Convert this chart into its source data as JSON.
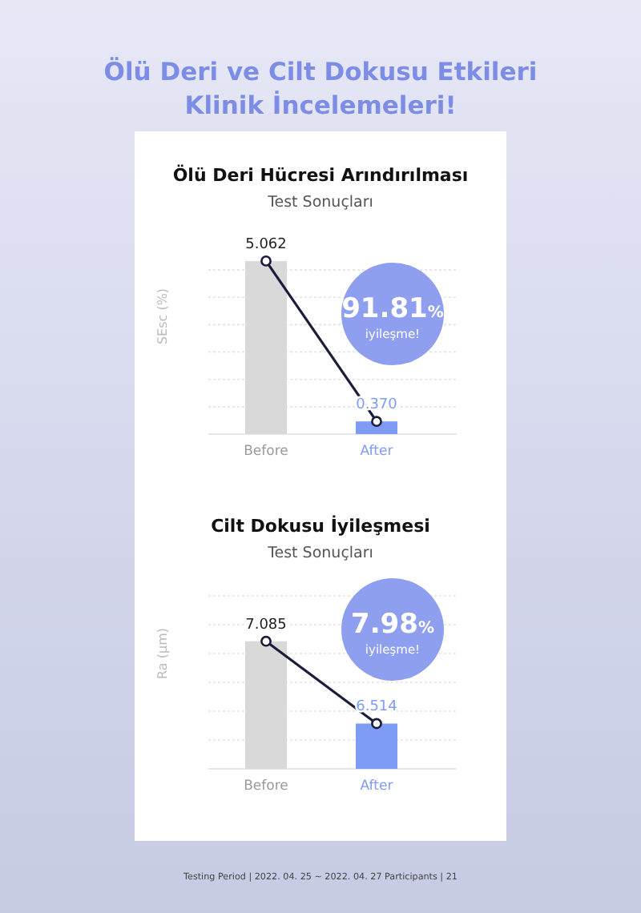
{
  "chart_data": [
    {
      "type": "bar",
      "title": "Ölü Deri Hücresi Arındırılması",
      "subtitle": "Test Sonuçları",
      "ylabel": "SEsc (%)",
      "categories": [
        "Before",
        "After"
      ],
      "series": [
        {
          "colors": [
            "#d9d9d9",
            "#7f9cf5"
          ],
          "values": [
            5.062,
            0.37
          ],
          "value_labels": [
            "5.062",
            "0.370"
          ]
        },
        {
          "type": "line",
          "color": "#1c1c3c",
          "values": [
            5.062,
            0.37
          ],
          "marker": "circle"
        }
      ],
      "ylim": [
        0,
        5.2
      ],
      "yticks": [
        {
          "value": 0,
          "label": null
        },
        {
          "value": 0.8,
          "label": null
        },
        {
          "value": 1.6,
          "label": null
        },
        {
          "value": 2.4,
          "label": null
        },
        {
          "value": 3.2,
          "label": null
        },
        {
          "value": 4.0,
          "label": null
        },
        {
          "value": 4.8,
          "label": null
        }
      ],
      "tick_labels": "x",
      "grid": "y",
      "annotations": [
        "Ölü Deri ve Cilt Dokusu Etkileri Klinik İncelemeleri!",
        "91.81%",
        "iyileşme!"
      ]
    },
    {
      "type": "bar",
      "title": "Cilt Dokusu İyileşmesi",
      "subtitle": "Test Sonuçları",
      "ylabel": "Ra (μm)",
      "categories": [
        "Before",
        "After"
      ],
      "series": [
        {
          "colors": [
            "#d9d9d9",
            "#7f9cf5"
          ],
          "values": [
            7.085,
            6.514
          ],
          "value_labels": [
            "7.085",
            "6.514"
          ]
        },
        {
          "type": "line",
          "color": "#1c1c3c",
          "values": [
            7.085,
            6.514
          ],
          "marker": "circle"
        }
      ],
      "ylim": [
        6.2,
        7.4
      ],
      "yticks": [
        {
          "value": 6.2,
          "label": null
        },
        {
          "value": 6.4,
          "label": null
        },
        {
          "value": 6.6,
          "label": null
        },
        {
          "value": 6.8,
          "label": null
        },
        {
          "value": 7.0,
          "label": null
        },
        {
          "value": 7.2,
          "label": null
        },
        {
          "value": 7.4,
          "label": null
        }
      ],
      "tick_labels": "x",
      "grid": "y",
      "annotations": [
        "7.98%",
        "iyileşme!",
        "Testing Period | 2022. 04. 25 ~ 2022. 04. 27 Participants | 21"
      ]
    }
  ]
}
